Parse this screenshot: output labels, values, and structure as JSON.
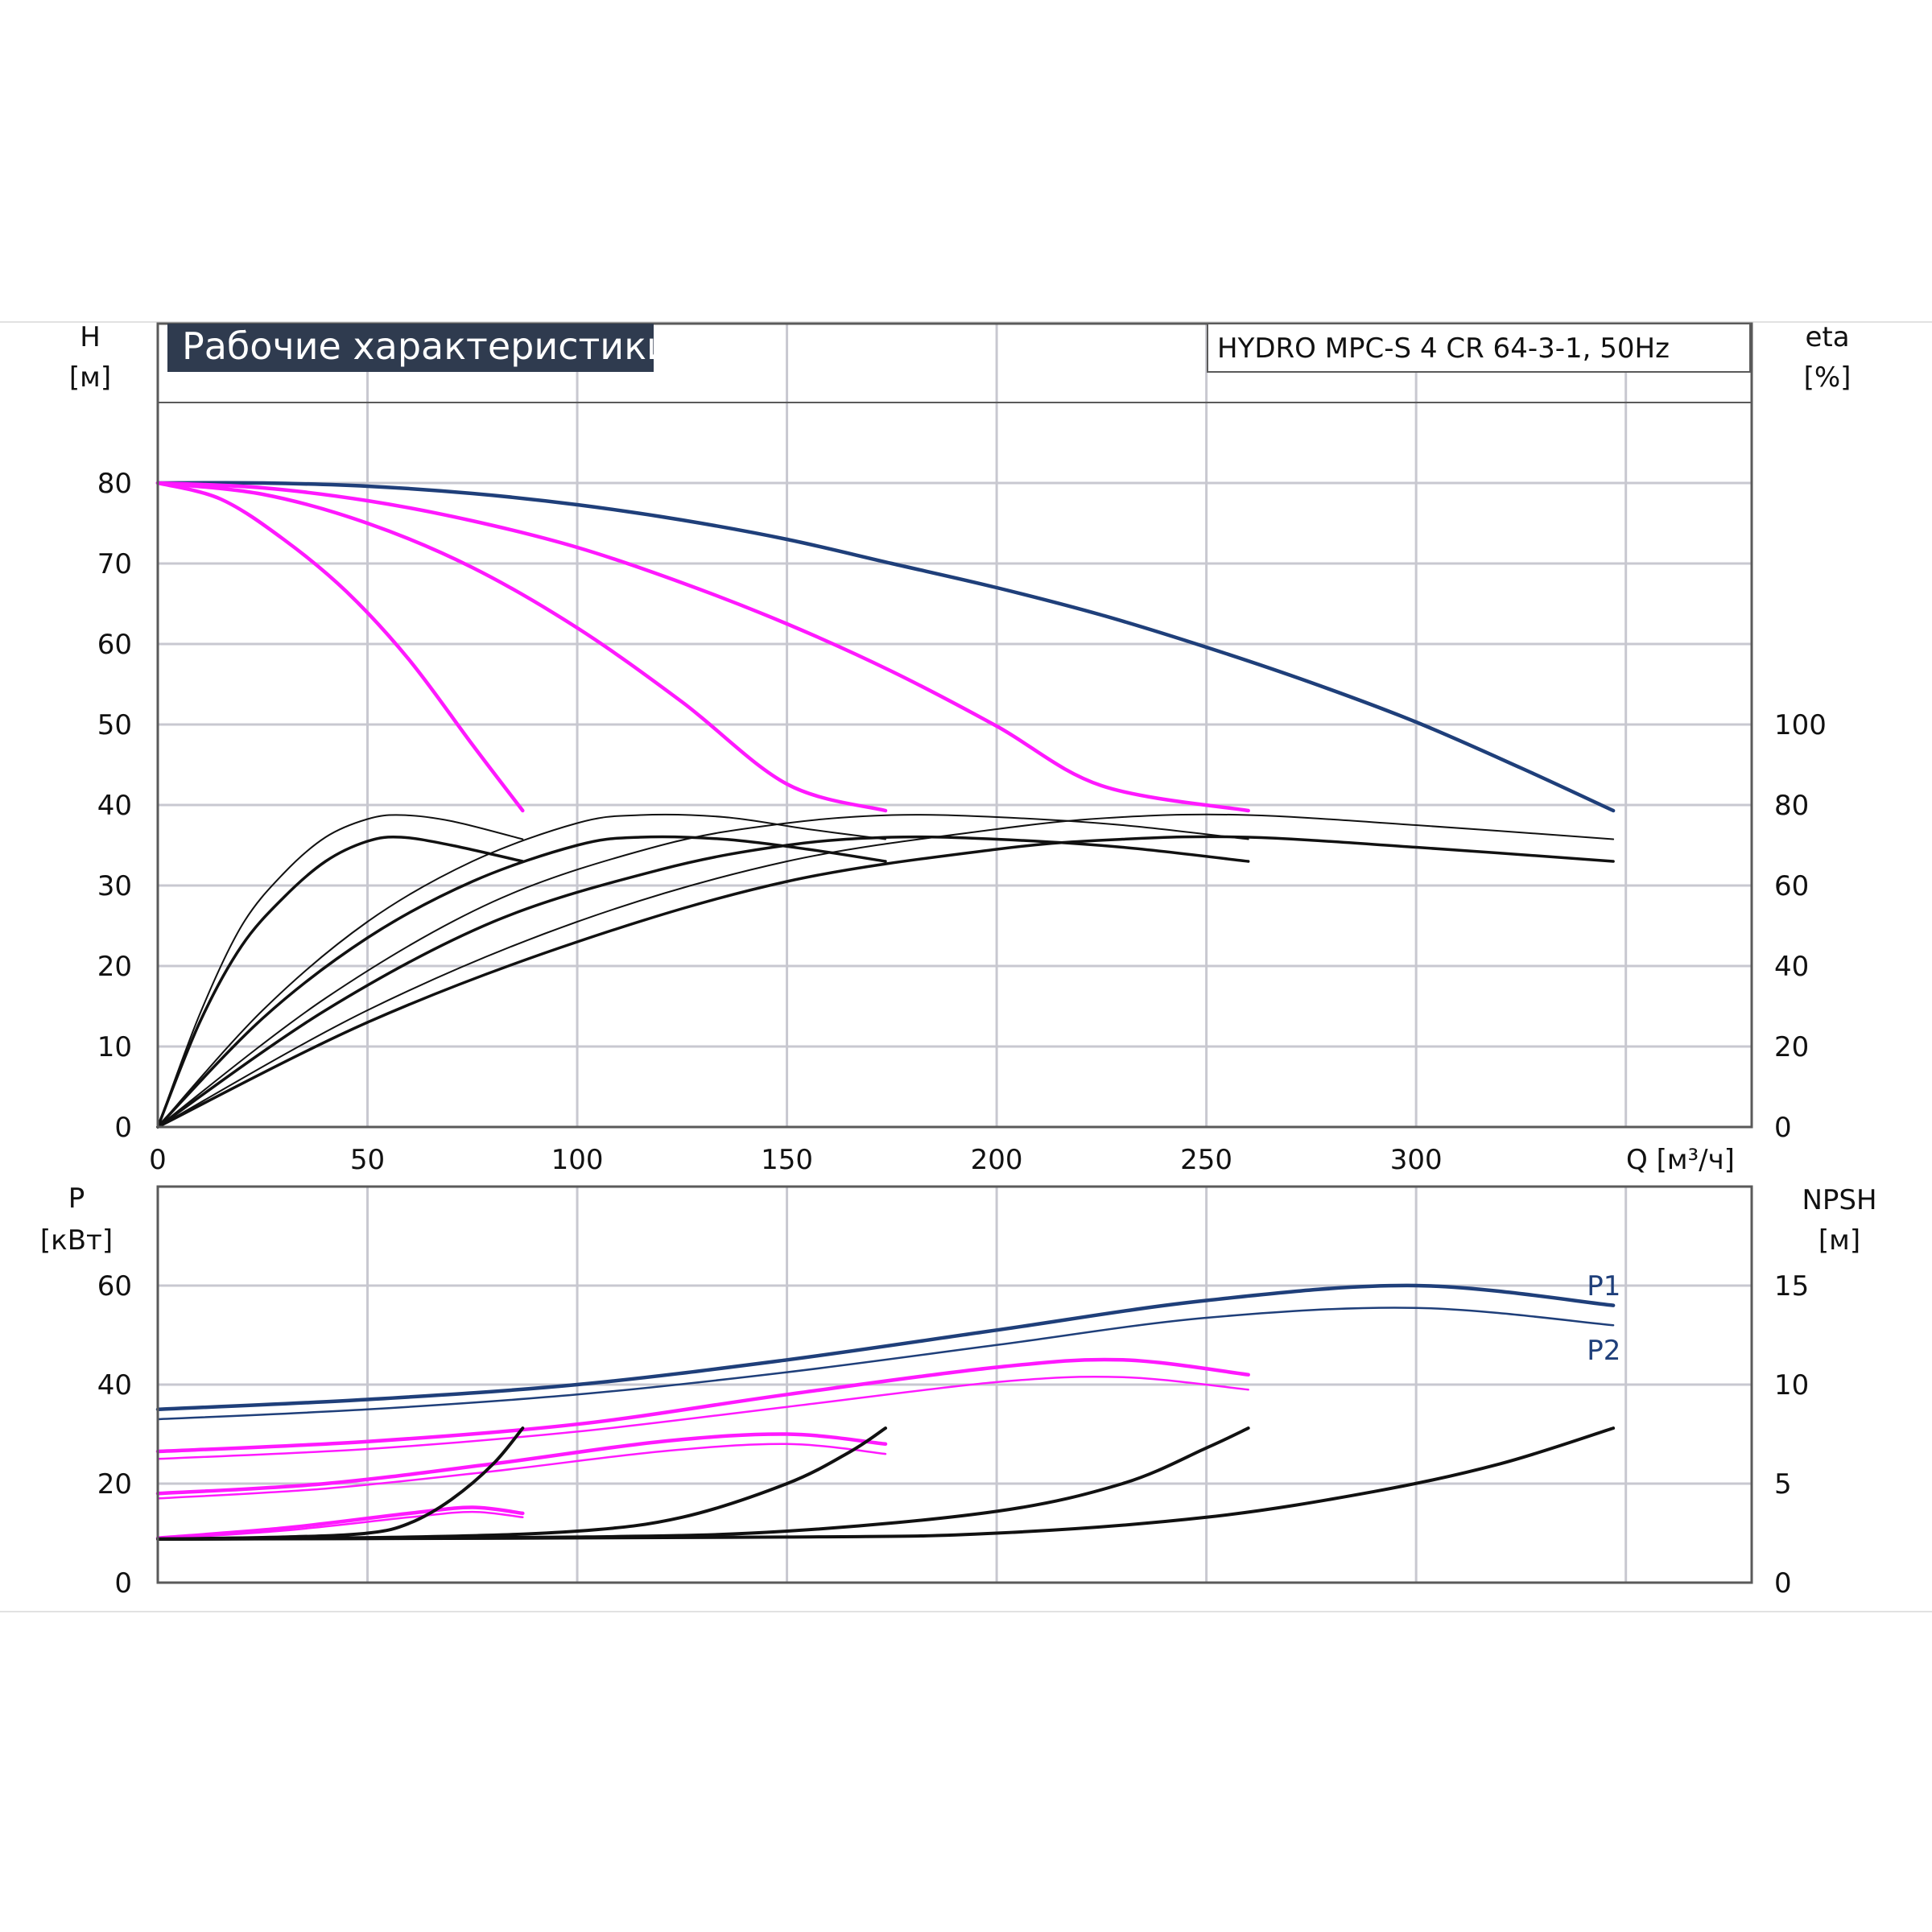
{
  "colors": {
    "navy": "#1f3f7a",
    "magenta": "#ff19ff",
    "black": "#111111",
    "title_bg": "#2f3b4f",
    "grid": "#c8c8d0"
  },
  "chart_data": [
    {
      "id": "head",
      "type": "line",
      "title": "Рабочие характеристики",
      "model": "HYDRO MPC-S 4 CR 64-3-1, 50Hz",
      "xlabel": "Q [м³/ч]",
      "ylabel": "H",
      "ylabel_unit": "[м]",
      "y2label": "eta",
      "y2label_unit": "[%]",
      "xlim": [
        0,
        380
      ],
      "ylim": [
        0,
        90
      ],
      "y2lim": [
        0,
        180
      ],
      "x_ticks": [
        "0",
        "50",
        "100",
        "150",
        "200",
        "250",
        "300"
      ],
      "x_tick_values": [
        0,
        50,
        100,
        150,
        200,
        250,
        300
      ],
      "y_ticks": [
        "0",
        "10",
        "20",
        "30",
        "40",
        "50",
        "60",
        "70",
        "80"
      ],
      "y_tick_values": [
        0,
        10,
        20,
        30,
        40,
        50,
        60,
        70,
        80
      ],
      "y2_ticks": [
        "0",
        "20",
        "40",
        "60",
        "80",
        "100"
      ],
      "y2_tick_values": [
        0,
        20,
        40,
        60,
        80,
        100
      ],
      "grid": true,
      "series": [
        {
          "kind": "head-4",
          "color": "navy",
          "width": 4.5,
          "x": [
            0,
            25,
            50,
            75,
            100,
            125,
            150,
            175,
            200,
            225,
            250,
            275,
            300,
            325,
            347
          ],
          "y": [
            80,
            80,
            79.6,
            78.7,
            77.3,
            75.4,
            73,
            70,
            67,
            63.6,
            59.6,
            55.2,
            50.3,
            44.6,
            39.3
          ]
        },
        {
          "kind": "head-3",
          "color": "magenta",
          "width": 4.5,
          "x": [
            0,
            25,
            50,
            75,
            100,
            125,
            150,
            175,
            200,
            225,
            260
          ],
          "y": [
            80,
            79.4,
            77.8,
            75.3,
            72,
            67.6,
            62.5,
            56.6,
            49.8,
            42.4,
            39.3
          ]
        },
        {
          "kind": "head-2",
          "color": "magenta",
          "width": 4.5,
          "x": [
            0,
            25,
            50,
            75,
            100,
            125,
            150,
            173.5
          ],
          "y": [
            80,
            78.6,
            75,
            69.5,
            62,
            52.8,
            42.6,
            39.3
          ]
        },
        {
          "kind": "head-1",
          "color": "magenta",
          "width": 4.5,
          "x": [
            0,
            15,
            30,
            45,
            60,
            75,
            87
          ],
          "y": [
            80,
            78,
            73,
            66.5,
            58,
            47.5,
            39.3
          ]
        },
        {
          "kind": "eta-1",
          "color": "black",
          "width": 2,
          "axis": "y2",
          "x": [
            0,
            10,
            20,
            30,
            40,
            50,
            58,
            70,
            87
          ],
          "y": [
            0,
            28,
            50,
            63,
            72,
            76.5,
            77.5,
            76,
            71.5
          ]
        },
        {
          "kind": "etas-1",
          "color": "black",
          "width": 3.5,
          "axis": "y2",
          "x": [
            0,
            10,
            20,
            30,
            40,
            50,
            58,
            70,
            87
          ],
          "y": [
            0,
            26,
            45,
            57,
            66,
            71,
            72,
            70,
            66
          ]
        },
        {
          "kind": "eta-2",
          "color": "black",
          "width": 2,
          "axis": "y2",
          "x": [
            0,
            25,
            50,
            75,
            100,
            115,
            135,
            155,
            173.5
          ],
          "y": [
            0,
            29,
            51,
            66,
            75.5,
            77.5,
            77,
            74,
            71.5
          ]
        },
        {
          "kind": "etas-2",
          "color": "black",
          "width": 3.5,
          "axis": "y2",
          "x": [
            0,
            25,
            50,
            75,
            100,
            115,
            135,
            155,
            173.5
          ],
          "y": [
            0,
            27,
            47,
            61,
            70,
            72,
            71.5,
            69,
            66
          ]
        },
        {
          "kind": "eta-3",
          "color": "black",
          "width": 2,
          "axis": "y2",
          "x": [
            0,
            40,
            80,
            120,
            150,
            175,
            200,
            230,
            260
          ],
          "y": [
            0,
            32,
            56,
            70,
            75.5,
            77.5,
            77,
            75,
            71.5
          ]
        },
        {
          "kind": "etas-3",
          "color": "black",
          "width": 3.5,
          "axis": "y2",
          "x": [
            0,
            40,
            80,
            120,
            150,
            175,
            200,
            230,
            260
          ],
          "y": [
            0,
            29,
            51,
            64,
            70,
            72,
            71.5,
            69.5,
            66
          ]
        },
        {
          "kind": "eta-4",
          "color": "black",
          "width": 2,
          "axis": "y2",
          "x": [
            0,
            50,
            100,
            150,
            200,
            230,
            260,
            300,
            347
          ],
          "y": [
            0,
            29,
            51,
            66,
            74,
            77,
            77.5,
            75,
            71.5
          ]
        },
        {
          "kind": "etas-4",
          "color": "black",
          "width": 3.5,
          "axis": "y2",
          "x": [
            0,
            50,
            100,
            150,
            200,
            230,
            260,
            300,
            347
          ],
          "y": [
            0,
            26,
            46,
            61,
            69,
            71.5,
            72,
            69.5,
            66
          ]
        }
      ]
    },
    {
      "id": "power",
      "type": "line",
      "ylabel": "P",
      "ylabel_unit": "[кВт]",
      "y2label": "NPSH",
      "y2label_unit": "[м]",
      "xlim": [
        0,
        380
      ],
      "ylim": [
        0,
        80
      ],
      "y2lim": [
        0,
        20
      ],
      "y_ticks": [
        "0",
        "20",
        "40",
        "60"
      ],
      "y_tick_values": [
        0,
        20,
        40,
        60
      ],
      "y2_ticks": [
        "0",
        "5",
        "10",
        "15"
      ],
      "y2_tick_values": [
        0,
        5,
        10,
        15
      ],
      "grid": true,
      "labels": [
        {
          "text": "P1",
          "x": 343,
          "y": 60
        },
        {
          "text": "P2",
          "x": 343,
          "y": 47
        }
      ],
      "series": [
        {
          "kind": "P1-4",
          "color": "navy",
          "width": 4.5,
          "x": [
            0,
            50,
            100,
            150,
            200,
            250,
            300,
            347
          ],
          "y": [
            35,
            37,
            40,
            45,
            51,
            57,
            60,
            56
          ]
        },
        {
          "kind": "P2-4",
          "color": "navy",
          "width": 2.5,
          "x": [
            0,
            50,
            100,
            150,
            200,
            250,
            300,
            347
          ],
          "y": [
            33,
            35,
            38,
            42.5,
            48,
            53.5,
            55.5,
            52
          ]
        },
        {
          "kind": "P1-3",
          "color": "magenta",
          "width": 4.5,
          "x": [
            0,
            50,
            100,
            150,
            200,
            230,
            260
          ],
          "y": [
            26.5,
            28.5,
            32,
            38,
            43.5,
            45,
            42
          ]
        },
        {
          "kind": "P2-3",
          "color": "magenta",
          "width": 2.5,
          "x": [
            0,
            50,
            100,
            150,
            200,
            230,
            260
          ],
          "y": [
            25,
            27,
            30.5,
            35.5,
            40.5,
            41.5,
            39
          ]
        },
        {
          "kind": "P1-2",
          "color": "magenta",
          "width": 4.5,
          "x": [
            0,
            40,
            80,
            120,
            150,
            173.5
          ],
          "y": [
            18,
            20,
            24,
            28.5,
            30,
            28
          ]
        },
        {
          "kind": "P2-2",
          "color": "magenta",
          "width": 2.5,
          "x": [
            0,
            40,
            80,
            120,
            150,
            173.5
          ],
          "y": [
            17,
            19,
            22.5,
            26.5,
            28,
            26
          ]
        },
        {
          "kind": "P1-1",
          "color": "magenta",
          "width": 4.5,
          "x": [
            0,
            30,
            60,
            75,
            87
          ],
          "y": [
            9,
            11,
            14,
            15.2,
            14
          ]
        },
        {
          "kind": "P2-1",
          "color": "magenta",
          "width": 2.5,
          "x": [
            0,
            30,
            60,
            75,
            87
          ],
          "y": [
            8.8,
            10.5,
            13.2,
            14.3,
            13.2
          ]
        },
        {
          "kind": "NPSH-1",
          "color": "black",
          "width": 4,
          "axis": "y2",
          "x": [
            0,
            30,
            50,
            60,
            70,
            80,
            87
          ],
          "y": [
            2.2,
            2.3,
            2.5,
            3,
            4.2,
            6,
            7.8
          ]
        },
        {
          "kind": "NPSH-2",
          "color": "black",
          "width": 4,
          "axis": "y2",
          "x": [
            0,
            60,
            100,
            125,
            150,
            165,
            173.5
          ],
          "y": [
            2.2,
            2.3,
            2.6,
            3.3,
            5,
            6.6,
            7.8
          ]
        },
        {
          "kind": "NPSH-3",
          "color": "black",
          "width": 4,
          "axis": "y2",
          "x": [
            0,
            100,
            150,
            200,
            230,
            250,
            260
          ],
          "y": [
            2.2,
            2.3,
            2.6,
            3.6,
            5,
            6.8,
            7.8
          ]
        },
        {
          "kind": "NPSH-4",
          "color": "black",
          "width": 4,
          "axis": "y2",
          "x": [
            0,
            150,
            200,
            250,
            290,
            320,
            347
          ],
          "y": [
            2.2,
            2.3,
            2.5,
            3.3,
            4.6,
            6,
            7.8
          ]
        }
      ]
    }
  ]
}
